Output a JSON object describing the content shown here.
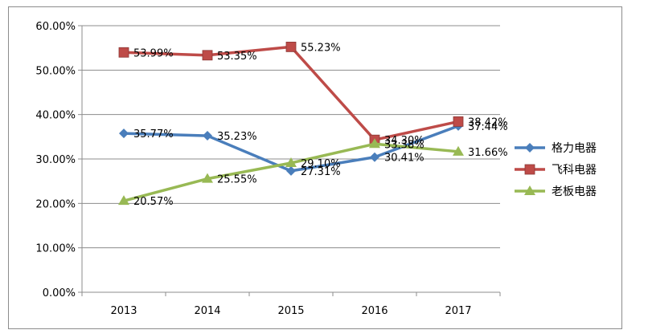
{
  "chart_data": {
    "type": "line",
    "title": "",
    "xlabel": "",
    "ylabel": "",
    "x": [
      "2013",
      "2014",
      "2015",
      "2016",
      "2017"
    ],
    "ylim": [
      0,
      0.6
    ],
    "yticks": [
      "0.00%",
      "10.00%",
      "20.00%",
      "30.00%",
      "40.00%",
      "50.00%",
      "60.00%"
    ],
    "grid": "horizontal",
    "legend_position": "right",
    "series": [
      {
        "name": "格力电器",
        "color": "#4a7ebb",
        "marker": "diamond",
        "values": [
          0.3577,
          0.3523,
          0.2731,
          0.3041,
          0.3744
        ],
        "labels": [
          "35.77%",
          "35.23%",
          "27.31%",
          "30.41%",
          "37.44%"
        ]
      },
      {
        "name": "飞科电器",
        "color": "#be4b48",
        "marker": "square",
        "values": [
          0.5399,
          0.5335,
          0.5523,
          0.343,
          0.3842
        ],
        "labels": [
          "53.99%",
          "53.35%",
          "55.23%",
          "34.30%",
          "38.42%"
        ]
      },
      {
        "name": "老板电器",
        "color": "#98b954",
        "marker": "triangle",
        "values": [
          0.2057,
          0.2555,
          0.291,
          0.3338,
          0.3166
        ],
        "labels": [
          "20.57%",
          "25.55%",
          "29.10%",
          "33.38%",
          "31.66%"
        ]
      }
    ]
  }
}
